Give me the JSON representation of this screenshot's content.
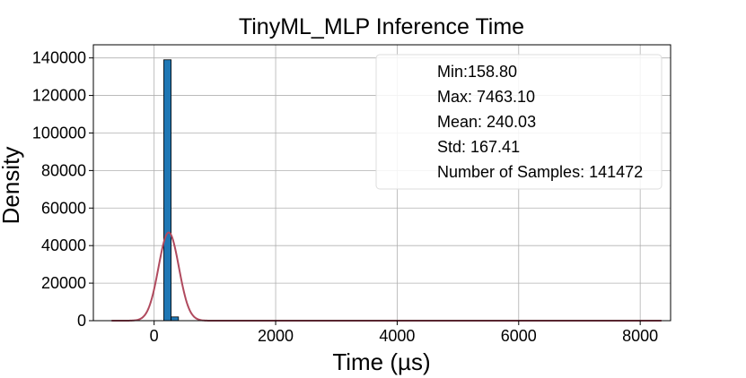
{
  "chart_data": {
    "type": "histogram",
    "title": "TinyML_MLP Inference Time",
    "xlabel": "Time (µs)",
    "ylabel": "Density",
    "xlim": [
      -1000,
      8500
    ],
    "ylim": [
      0,
      147000
    ],
    "xticks": [
      0,
      2000,
      4000,
      6000,
      8000
    ],
    "yticks": [
      0,
      20000,
      40000,
      60000,
      80000,
      100000,
      120000,
      140000
    ],
    "grid": true,
    "bars": [
      {
        "x0": 158.8,
        "x1": 279.8,
        "value": 139000
      },
      {
        "x0": 279.8,
        "x1": 400.8,
        "value": 2000
      }
    ],
    "bar_color": "#1f77b4",
    "curve": {
      "type": "normal",
      "mean": 240.03,
      "std": 167.41,
      "peak": 47000,
      "x_range": [
        -700,
        8350
      ],
      "color": "#b04a5e"
    },
    "stats_box": {
      "placement": "top-right",
      "lines": [
        "Min:158.80",
        "Max: 7463.10",
        "Mean: 240.03",
        "Std: 167.41",
        "Number of Samples: 141472"
      ]
    }
  }
}
